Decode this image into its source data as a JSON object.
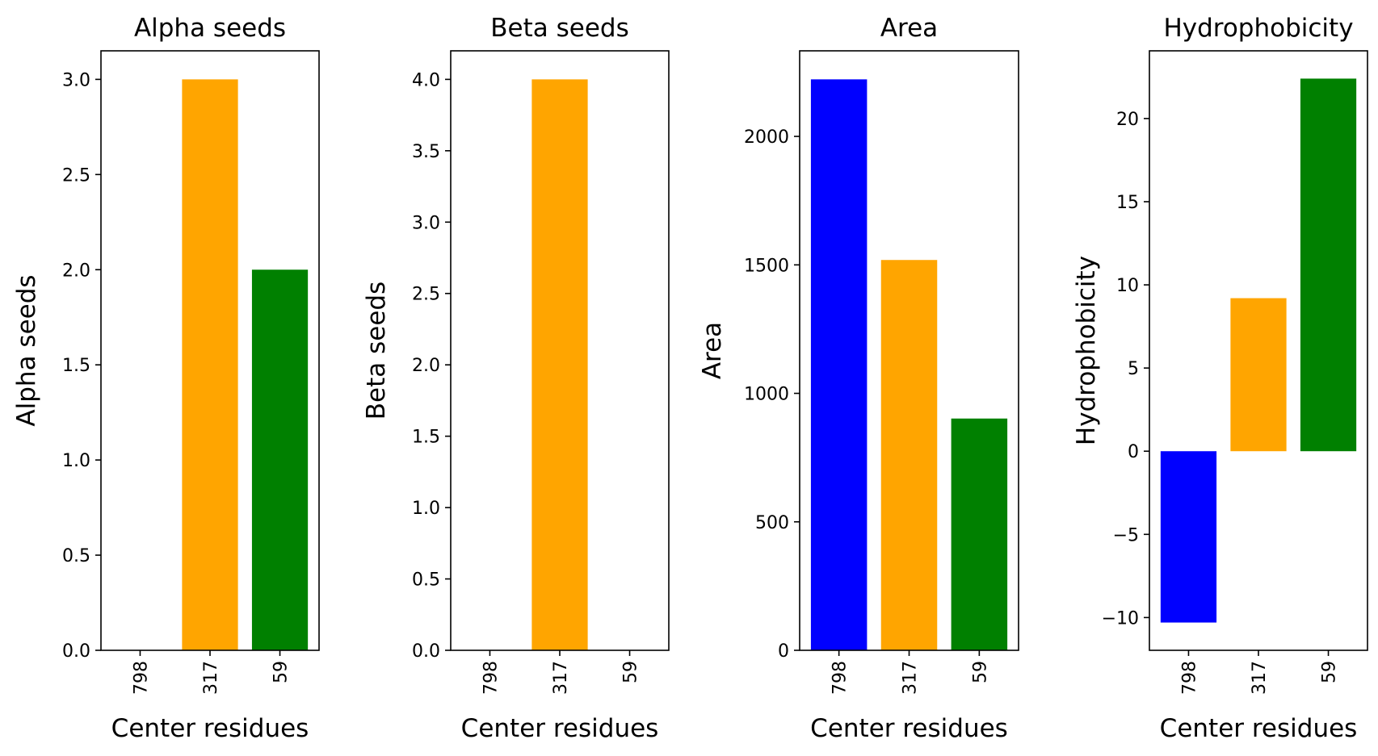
{
  "chart_data": [
    {
      "type": "bar",
      "title": "Alpha seeds",
      "xlabel": "Center residues",
      "ylabel": "Alpha seeds",
      "categories": [
        "798",
        "317",
        "59"
      ],
      "values": [
        0,
        3,
        2
      ],
      "colors": [
        "#0000ff",
        "#ffa500",
        "#008000"
      ],
      "ylim": [
        0,
        3.15
      ],
      "yticks": [
        0.0,
        0.5,
        1.0,
        1.5,
        2.0,
        2.5,
        3.0
      ],
      "ytick_labels": [
        "0.0",
        "0.5",
        "1.0",
        "1.5",
        "2.0",
        "2.5",
        "3.0"
      ]
    },
    {
      "type": "bar",
      "title": "Beta seeds",
      "xlabel": "Center residues",
      "ylabel": "Beta seeds",
      "categories": [
        "798",
        "317",
        "59"
      ],
      "values": [
        0,
        4,
        0
      ],
      "colors": [
        "#0000ff",
        "#ffa500",
        "#008000"
      ],
      "ylim": [
        0,
        4.2
      ],
      "yticks": [
        0.0,
        0.5,
        1.0,
        1.5,
        2.0,
        2.5,
        3.0,
        3.5,
        4.0
      ],
      "ytick_labels": [
        "0.0",
        "0.5",
        "1.0",
        "1.5",
        "2.0",
        "2.5",
        "3.0",
        "3.5",
        "4.0"
      ]
    },
    {
      "type": "bar",
      "title": "Area",
      "xlabel": "Center residues",
      "ylabel": "Area",
      "categories": [
        "798",
        "317",
        "59"
      ],
      "values": [
        2222,
        1519,
        902
      ],
      "colors": [
        "#0000ff",
        "#ffa500",
        "#008000"
      ],
      "ylim": [
        0,
        2333
      ],
      "yticks": [
        0,
        500,
        1000,
        1500,
        2000
      ],
      "ytick_labels": [
        "0",
        "500",
        "1000",
        "1500",
        "2000"
      ]
    },
    {
      "type": "bar",
      "title": "Hydrophobicity",
      "xlabel": "Center residues",
      "ylabel": "Hydrophobicity",
      "categories": [
        "798",
        "317",
        "59"
      ],
      "values": [
        -10.3,
        9.2,
        22.4
      ],
      "colors": [
        "#0000ff",
        "#ffa500",
        "#008000"
      ],
      "ylim": [
        -11.97,
        24.07
      ],
      "yticks": [
        -10,
        -5,
        0,
        5,
        10,
        15,
        20
      ],
      "ytick_labels": [
        "−10",
        "−5",
        "0",
        "5",
        "10",
        "15",
        "20"
      ]
    }
  ]
}
